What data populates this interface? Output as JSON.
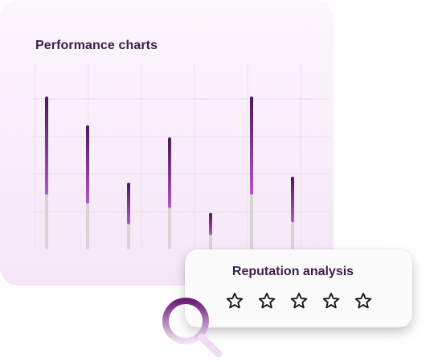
{
  "performance": {
    "title": "Performance charts"
  },
  "chart_data": {
    "type": "bar",
    "title": "Performance charts",
    "categories": [
      "",
      "",
      "",
      "",
      "",
      "",
      ""
    ],
    "series": [
      {
        "values": [
          100,
          81,
          43,
          73,
          23,
          100,
          47
        ]
      }
    ],
    "ylim": [
      0,
      100
    ],
    "grid": true,
    "colors": {
      "top": "#4a1a53",
      "mid": "#b258c8",
      "base": "#d9d4d4"
    }
  },
  "reputation": {
    "title": "Reputation analysis",
    "rating": 0,
    "max_rating": 5
  },
  "icons": [
    "star-icon",
    "magnifier-icon"
  ]
}
